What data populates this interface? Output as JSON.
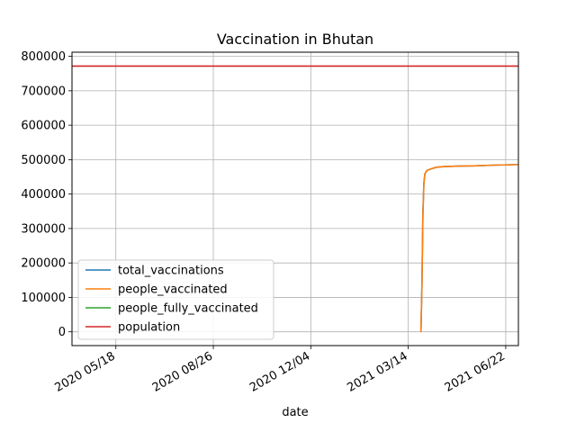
{
  "chart_data": {
    "type": "line",
    "title": "Vaccination in Bhutan",
    "xlabel": "date",
    "ylabel": "",
    "x_axis_type": "date",
    "xlim": [
      "2020-04-03",
      "2021-07-05"
    ],
    "ylim": [
      -40000,
      812000
    ],
    "x_ticks": [
      {
        "date": "2020-05-18",
        "label": "2020 05/18"
      },
      {
        "date": "2020-08-26",
        "label": "2020 08/26"
      },
      {
        "date": "2020-12-04",
        "label": "2020 12/04"
      },
      {
        "date": "2021-03-14",
        "label": "2021 03/14"
      },
      {
        "date": "2021-06-22",
        "label": "2021 06/22"
      }
    ],
    "y_ticks": [
      0,
      100000,
      200000,
      300000,
      400000,
      500000,
      600000,
      700000,
      800000
    ],
    "y_tick_labels": [
      "0",
      "100000",
      "200000",
      "300000",
      "400000",
      "500000",
      "600000",
      "700000",
      "800000"
    ],
    "grid": true,
    "legend_position": "lower-left",
    "series": [
      {
        "name": "total_vaccinations",
        "color": "#1f77b4",
        "points": [
          [
            "2021-03-27",
            0
          ],
          [
            "2021-03-28",
            130000
          ],
          [
            "2021-03-29",
            340000
          ],
          [
            "2021-03-30",
            430000
          ],
          [
            "2021-03-31",
            458000
          ],
          [
            "2021-04-02",
            468000
          ],
          [
            "2021-04-06",
            473000
          ],
          [
            "2021-04-12",
            478000
          ],
          [
            "2021-04-20",
            480000
          ],
          [
            "2021-05-01",
            481000
          ],
          [
            "2021-05-20",
            482000
          ],
          [
            "2021-06-10",
            484000
          ],
          [
            "2021-06-25",
            485000
          ],
          [
            "2021-07-05",
            486000
          ]
        ]
      },
      {
        "name": "people_vaccinated",
        "color": "#ff7f0e",
        "points": [
          [
            "2021-03-27",
            0
          ],
          [
            "2021-03-28",
            130000
          ],
          [
            "2021-03-29",
            340000
          ],
          [
            "2021-03-30",
            430000
          ],
          [
            "2021-03-31",
            458000
          ],
          [
            "2021-04-02",
            468000
          ],
          [
            "2021-04-06",
            473000
          ],
          [
            "2021-04-12",
            478000
          ],
          [
            "2021-04-20",
            480000
          ],
          [
            "2021-05-01",
            481000
          ],
          [
            "2021-05-20",
            482000
          ],
          [
            "2021-06-10",
            484000
          ],
          [
            "2021-06-25",
            485000
          ],
          [
            "2021-07-05",
            486000
          ]
        ]
      },
      {
        "name": "people_fully_vaccinated",
        "color": "#2ca02c",
        "points": []
      },
      {
        "name": "population",
        "color": "#d62728",
        "points": [
          [
            "2020-04-03",
            771612
          ],
          [
            "2021-07-05",
            771612
          ]
        ]
      }
    ]
  }
}
